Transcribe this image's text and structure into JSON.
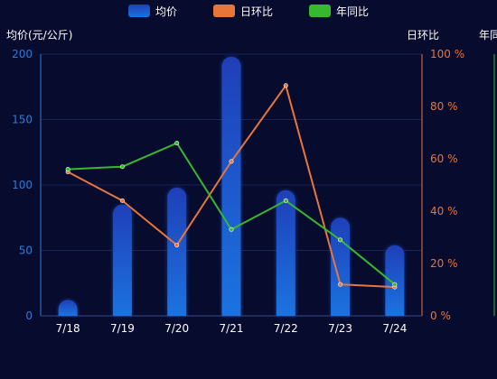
{
  "colors": {
    "background": "#070b2e",
    "bar_top": "#1f3fb8",
    "bar_bottom": "#1b73e0",
    "left_axis": "#2e7bd6",
    "right_axis": "#e8753a",
    "yoy_axis": "#36b82f",
    "grid": "#1a2356",
    "text_white": "#ffffff"
  },
  "legend": {
    "price": {
      "label": "均价",
      "icon": "blue-swatch-icon"
    },
    "day": {
      "label": "日环比",
      "icon": "orange-swatch-icon"
    },
    "year": {
      "label": "年同比",
      "icon": "green-swatch-icon"
    }
  },
  "chart_data": {
    "type": "bar",
    "categories": [
      "7/18",
      "7/19",
      "7/20",
      "7/21",
      "7/22",
      "7/23",
      "7/24"
    ],
    "series": [
      {
        "name": "均价",
        "type": "bar",
        "axis": "left",
        "values": [
          10,
          85,
          98,
          198,
          96,
          75,
          54
        ]
      },
      {
        "name": "日环比",
        "type": "line",
        "axis": "right",
        "values": [
          55,
          44,
          27,
          59,
          88,
          12,
          11
        ]
      },
      {
        "name": "年同比",
        "type": "line",
        "axis": "yoy",
        "values": [
          56,
          57,
          66,
          33,
          44,
          29,
          12
        ]
      }
    ],
    "axes": {
      "left": {
        "label": "均价(元/公斤)",
        "ticks": [
          "0",
          "50",
          "100",
          "150",
          "200"
        ],
        "ylim": [
          0,
          200
        ]
      },
      "right": {
        "label": "日环比",
        "ticks": [
          "0 %",
          "20 %",
          "40 %",
          "60 %",
          "80 %",
          "100 %"
        ],
        "ylim": [
          0,
          100
        ]
      },
      "yoy": {
        "label": "年同",
        "ylim": [
          0,
          100
        ]
      }
    },
    "grid": true,
    "legend_position": "top"
  }
}
